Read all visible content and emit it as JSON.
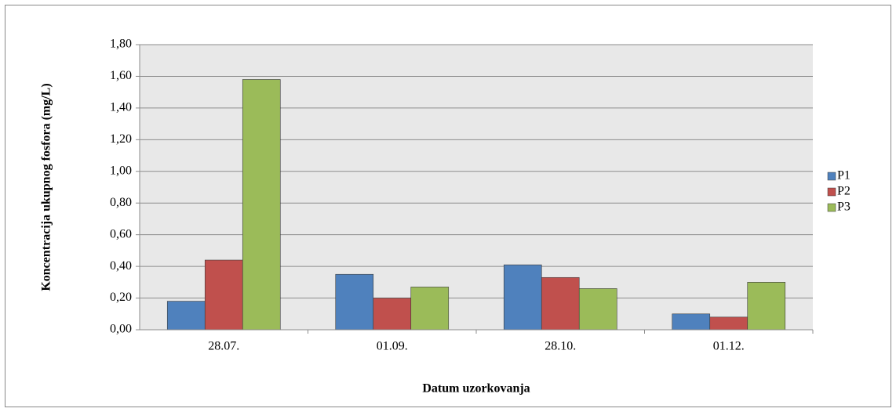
{
  "chart_data": {
    "type": "bar",
    "x_label": "Datum uzorkovanja",
    "y_label": "Koncentracija ukupnog fosfora (mg/L)",
    "categories": [
      "28.07.",
      "01.09.",
      "28.10.",
      "01.12."
    ],
    "series": [
      {
        "name": "P1",
        "color": "#4f81bd",
        "values": [
          0.18,
          0.35,
          0.41,
          0.1
        ]
      },
      {
        "name": "P2",
        "color": "#c0504d",
        "values": [
          0.44,
          0.2,
          0.33,
          0.08
        ]
      },
      {
        "name": "P3",
        "color": "#9bbb59",
        "values": [
          1.58,
          0.27,
          0.26,
          0.3
        ]
      }
    ],
    "ylim": [
      0,
      1.8
    ],
    "yticks": [
      {
        "value": 0,
        "label": "0,00"
      },
      {
        "value": 0.2,
        "label": "0,20"
      },
      {
        "value": 0.4,
        "label": "0,40"
      },
      {
        "value": 0.6,
        "label": "0,60"
      },
      {
        "value": 0.8,
        "label": "0,80"
      },
      {
        "value": 1.0,
        "label": "1,00"
      },
      {
        "value": 1.2,
        "label": "1,20"
      },
      {
        "value": 1.4,
        "label": "1,40"
      },
      {
        "value": 1.6,
        "label": "1,60"
      },
      {
        "value": 1.8,
        "label": "1,80"
      }
    ],
    "grid": true,
    "legend": "right"
  }
}
